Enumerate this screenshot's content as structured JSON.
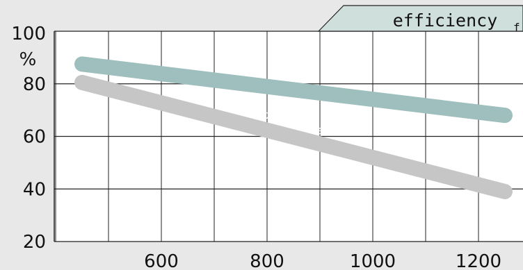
{
  "chart_data": {
    "type": "line",
    "title": "efficiency",
    "title_clipped_suffix": "f",
    "y_unit": "%",
    "xlim": [
      350,
      1300
    ],
    "ylim": [
      20,
      100
    ],
    "x_ticks": [
      600,
      800,
      1000,
      1200
    ],
    "x_tick_labels": [
      "600",
      "800",
      "1000",
      "1200"
    ],
    "y_ticks": [
      20,
      40,
      60,
      80,
      100
    ],
    "y_tick_labels": [
      "20",
      "40",
      "60",
      "80",
      "100"
    ],
    "grid": true,
    "series": [
      {
        "x": [
          450,
          1250
        ],
        "y": [
          87.5,
          68
        ],
        "color": "#9ebfbd"
      },
      {
        "x": [
          450,
          1250
        ],
        "y": [
          80.5,
          39
        ],
        "color": "#c6c6c6"
      }
    ],
    "annotations": [
      {
        "text": "no air preheat",
        "x": 845,
        "y": 64,
        "color": "#ffffff"
      }
    ],
    "colors": {
      "background": "#e8e8e8",
      "plot_area": "#ffffff",
      "grid": "#222222",
      "title_tab": "#cfdfdc"
    }
  }
}
